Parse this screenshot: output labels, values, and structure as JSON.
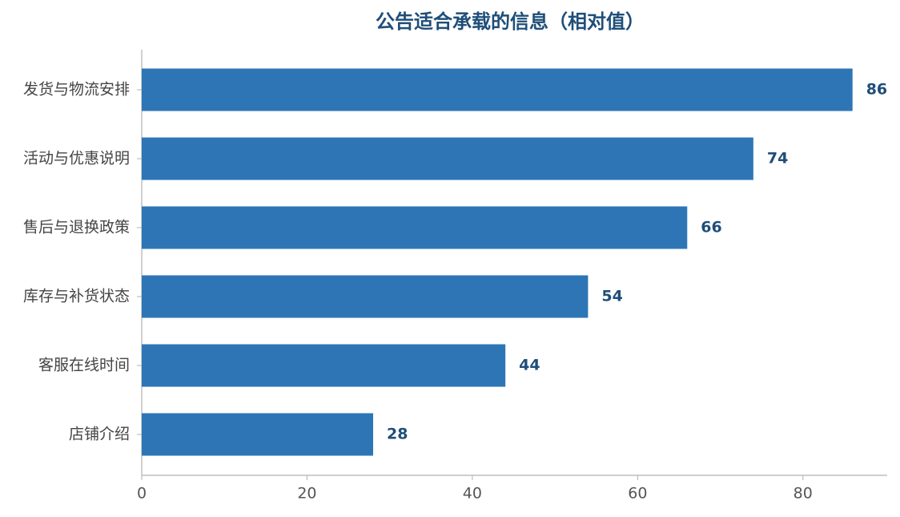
{
  "chart_data": {
    "type": "bar",
    "orientation": "horizontal",
    "title": "公告适合承载的信息（相对值）",
    "categories": [
      "发货与物流安排",
      "活动与优惠说明",
      "售后与退换政策",
      "库存与补货状态",
      "客服在线时间",
      "店铺介绍"
    ],
    "values": [
      86,
      74,
      66,
      54,
      44,
      28
    ],
    "color": "#2e75b6",
    "xlim": [
      0,
      90
    ],
    "xticks": [
      0,
      20,
      40,
      60,
      80
    ],
    "grid": false
  }
}
